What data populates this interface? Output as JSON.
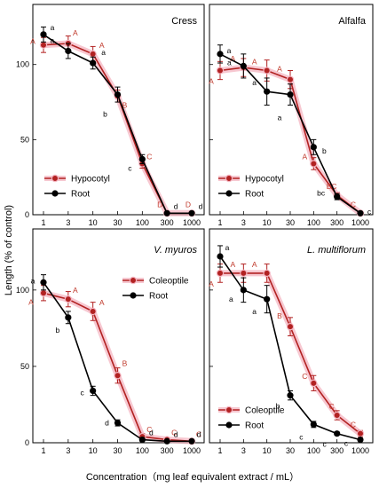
{
  "colors": {
    "hypocotyl": "#b22222",
    "root": "#000000",
    "glow": "#f4b6c2",
    "label_hyp": "#c0392b"
  },
  "xlabel": "Concentration（mg leaf equivalent extract / mL）",
  "ylabel": "Length (% of control)",
  "chart_data": [
    {
      "type": "line",
      "title": "Cress",
      "x": [
        1,
        3,
        10,
        30,
        100,
        300,
        1000
      ],
      "xticks": [
        "1",
        "3",
        "10",
        "30",
        "100",
        "300",
        "1000"
      ],
      "ylim": [
        0,
        140
      ],
      "yticks": [
        "0",
        "50",
        "100"
      ],
      "legend_placement": "bottom-left",
      "series": [
        {
          "name": "Hypocotyl",
          "key": "hyp",
          "values": [
            113,
            114,
            107,
            79,
            34,
            1,
            1
          ],
          "errors": [
            5,
            5,
            5,
            4,
            3,
            0,
            0
          ],
          "labels": [
            "A",
            "A",
            "A",
            "B",
            "C",
            "D",
            "D"
          ]
        },
        {
          "name": "Root",
          "key": "root",
          "values": [
            120,
            109,
            101,
            80,
            37,
            1,
            1
          ],
          "errors": [
            5,
            5,
            4,
            5,
            3,
            0,
            0
          ],
          "labels": [
            "a",
            "a",
            "a",
            "b",
            "c",
            "d",
            "d"
          ]
        }
      ]
    },
    {
      "type": "line",
      "title": "Alfalfa",
      "x": [
        1,
        3,
        10,
        30,
        100,
        300,
        1000
      ],
      "xticks": [
        "1",
        "3",
        "10",
        "30",
        "100",
        "300",
        "1000"
      ],
      "ylim": [
        0,
        140
      ],
      "yticks": [
        "0",
        "50",
        "100"
      ],
      "legend_placement": "bottom-left",
      "series": [
        {
          "name": "Hypocotyl",
          "key": "hyp",
          "values": [
            96,
            98,
            96,
            90,
            34,
            13,
            1
          ],
          "errors": [
            6,
            6,
            7,
            6,
            4,
            2,
            0
          ],
          "labels": [
            "A",
            "A",
            "A",
            "A",
            "A",
            "BC",
            "C"
          ]
        },
        {
          "name": "Root",
          "key": "root",
          "values": [
            107,
            99,
            82,
            80,
            45,
            12,
            1
          ],
          "errors": [
            6,
            8,
            9,
            7,
            5,
            2,
            0
          ],
          "labels": [
            "a",
            "a",
            "a",
            "a",
            "b",
            "bc",
            "c"
          ]
        }
      ]
    },
    {
      "type": "line",
      "title": "V. myuros",
      "title_italic": true,
      "x": [
        1,
        3,
        10,
        30,
        100,
        300,
        1000
      ],
      "xticks": [
        "1",
        "3",
        "10",
        "30",
        "100",
        "300",
        "1000"
      ],
      "ylim": [
        0,
        140
      ],
      "yticks": [
        "0",
        "50",
        "100"
      ],
      "legend_placement": "top-right",
      "series": [
        {
          "name": "Coleoptile",
          "key": "hyp",
          "values": [
            98,
            94,
            86,
            44,
            4,
            2,
            1
          ],
          "errors": [
            5,
            5,
            6,
            5,
            2,
            0,
            0
          ],
          "labels": [
            "A",
            "A",
            "A",
            "B",
            "C",
            "C",
            "C"
          ]
        },
        {
          "name": "Root",
          "key": "root",
          "values": [
            105,
            82,
            34,
            13,
            2,
            1,
            1
          ],
          "errors": [
            5,
            4,
            3,
            2,
            1,
            0,
            0
          ],
          "labels": [
            "a",
            "b",
            "c",
            "d",
            "d",
            "d",
            "d"
          ]
        }
      ]
    },
    {
      "type": "line",
      "title": "L. multiflorum",
      "title_italic": true,
      "x": [
        1,
        3,
        10,
        30,
        100,
        300,
        1000
      ],
      "xticks": [
        "1",
        "3",
        "10",
        "30",
        "100",
        "300",
        "1000"
      ],
      "ylim": [
        0,
        140
      ],
      "yticks": [
        "0",
        "50",
        "100"
      ],
      "legend_placement": "bottom-left",
      "series": [
        {
          "name": "Coleoptile",
          "key": "hyp",
          "values": [
            111,
            111,
            111,
            76,
            39,
            18,
            6
          ],
          "errors": [
            6,
            6,
            6,
            6,
            5,
            3,
            2
          ],
          "labels": [
            "A",
            "A",
            "A",
            "B",
            "C",
            "C",
            "C"
          ]
        },
        {
          "name": "Root",
          "key": "root",
          "values": [
            122,
            100,
            94,
            31,
            12,
            6,
            2
          ],
          "errors": [
            7,
            8,
            9,
            3,
            2,
            1,
            0
          ],
          "labels": [
            "a",
            "a",
            "a",
            "b",
            "c",
            "c",
            "c"
          ]
        }
      ]
    }
  ]
}
